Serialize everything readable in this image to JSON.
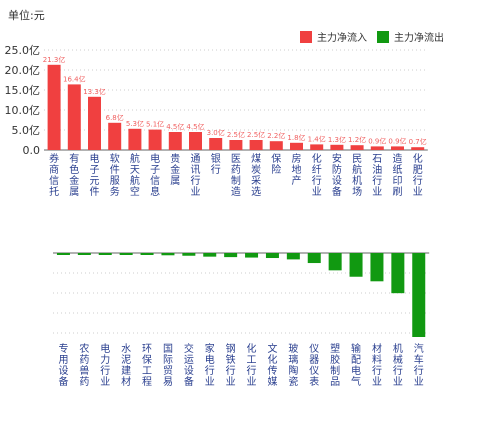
{
  "unit_label": "单位:元",
  "legend": {
    "inflow_label": "主力净流入",
    "outflow_label": "主力净流出",
    "inflow_color": "#f04040",
    "outflow_color": "#119911"
  },
  "chart_data": [
    {
      "type": "bar",
      "title": "",
      "yticks": [
        "25.0亿",
        "20.0亿",
        "15.0亿",
        "10.0亿",
        "5.0亿",
        "0.0"
      ],
      "ylim": [
        0,
        25
      ],
      "grid": true,
      "legend_position": "top-right",
      "series": [
        {
          "name": "主力净流入",
          "color": "#f04040"
        }
      ],
      "categories": [
        "券商信托",
        "有色金属",
        "电子元件",
        "软件服务",
        "航天航空",
        "电子信息",
        "贵金属",
        "通讯行业",
        "银行",
        "医药制造",
        "煤炭采选",
        "保险",
        "房地产",
        "化纤行业",
        "安防设备",
        "民航机场",
        "石油行业",
        "造纸印刷",
        "化肥行业"
      ],
      "values": [
        21.3,
        16.4,
        13.3,
        6.8,
        5.3,
        5.1,
        4.5,
        4.5,
        3.0,
        2.5,
        2.5,
        2.2,
        1.8,
        1.4,
        1.3,
        1.2,
        0.9,
        0.9,
        0.7
      ],
      "value_labels": [
        "21.3亿",
        "16.4亿",
        "13.3亿",
        "6.8亿",
        "5.3亿",
        "5.1亿",
        "4.5亿",
        "4.5亿",
        "3.0亿",
        "2.5亿",
        "2.5亿",
        "2.2亿",
        "1.8亿",
        "1.4亿",
        "1.3亿",
        "1.2亿",
        "0.9亿",
        "0.9亿",
        "0.7亿"
      ]
    },
    {
      "type": "bar",
      "title": "",
      "series": [
        {
          "name": "主力净流出",
          "color": "#119911"
        }
      ],
      "categories": [
        "专用设备",
        "农药兽药",
        "电力行业",
        "水泥建材",
        "环保工程",
        "国际贸易",
        "交运设备",
        "家电行业",
        "钢铁行业",
        "化工行业",
        "文化传媒",
        "玻璃陶瓷",
        "仪器仪表",
        "塑胶制品",
        "输配电气",
        "材料行业",
        "机械行业",
        "汽车行业"
      ],
      "values": [
        -0.1,
        -0.15,
        -0.2,
        -0.2,
        -0.2,
        -0.25,
        -0.3,
        -0.4,
        -0.45,
        -0.5,
        -0.55,
        -0.7,
        -1.1,
        -1.9,
        -2.6,
        -3.1,
        -4.4,
        -9.2
      ],
      "ylim": [
        -9.5,
        0
      ],
      "grid": true
    }
  ]
}
